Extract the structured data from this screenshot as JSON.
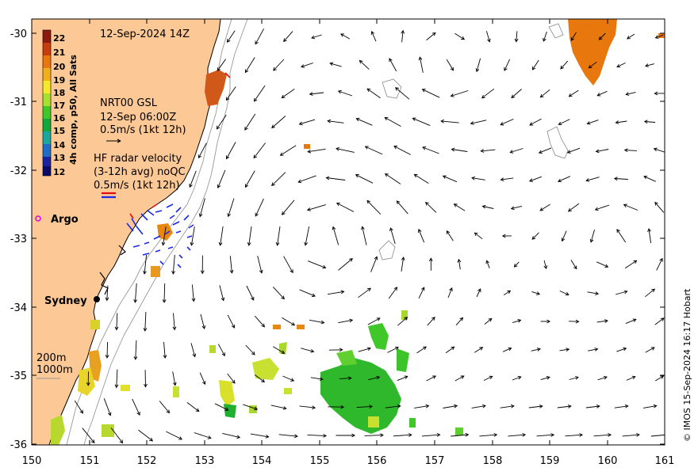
{
  "title": "12-Sep-2024 14Z",
  "colorbar": {
    "label": "4h comp, p50, All Sats",
    "ticks": [
      "22",
      "21",
      "20",
      "19",
      "18",
      "17",
      "16",
      "15",
      "14",
      "13",
      "12"
    ],
    "colors": [
      "#8b1a0e",
      "#c83c0e",
      "#e8780e",
      "#f0b01e",
      "#f2ea2a",
      "#a8e032",
      "#40c82a",
      "#10a83c",
      "#18a8a0",
      "#1e6ec8",
      "#1a22a0",
      "#0a0a6a"
    ]
  },
  "gsl_legend": {
    "line1": "NRT00 GSL",
    "line2": "12-Sep 06:00Z",
    "line3": "0.5m/s (1kt 12h)"
  },
  "hf_legend": {
    "line1": "HF radar velocity",
    "line2": "(3-12h avg) noQC",
    "line3": "0.5m/s (1kt 12h)"
  },
  "places": {
    "argo": "Argo",
    "sydney": "Sydney"
  },
  "isobaths": {
    "shallow": "200m",
    "deep": "1000m"
  },
  "axes": {
    "x_ticks": [
      "150",
      "151",
      "152",
      "153",
      "154",
      "155",
      "156",
      "157",
      "158",
      "159",
      "160",
      "161"
    ],
    "y_ticks": [
      "-30",
      "-31",
      "-32",
      "-33",
      "-34",
      "-35",
      "-36"
    ]
  },
  "credit": "© IMOS 15-Sep-2024 16:17 Hobart",
  "colors": {
    "land": "#fcc896",
    "argo_marker": "#e000e0",
    "hf_radar": "#1a2ae8",
    "hf_radar_alt": "#e01010"
  }
}
